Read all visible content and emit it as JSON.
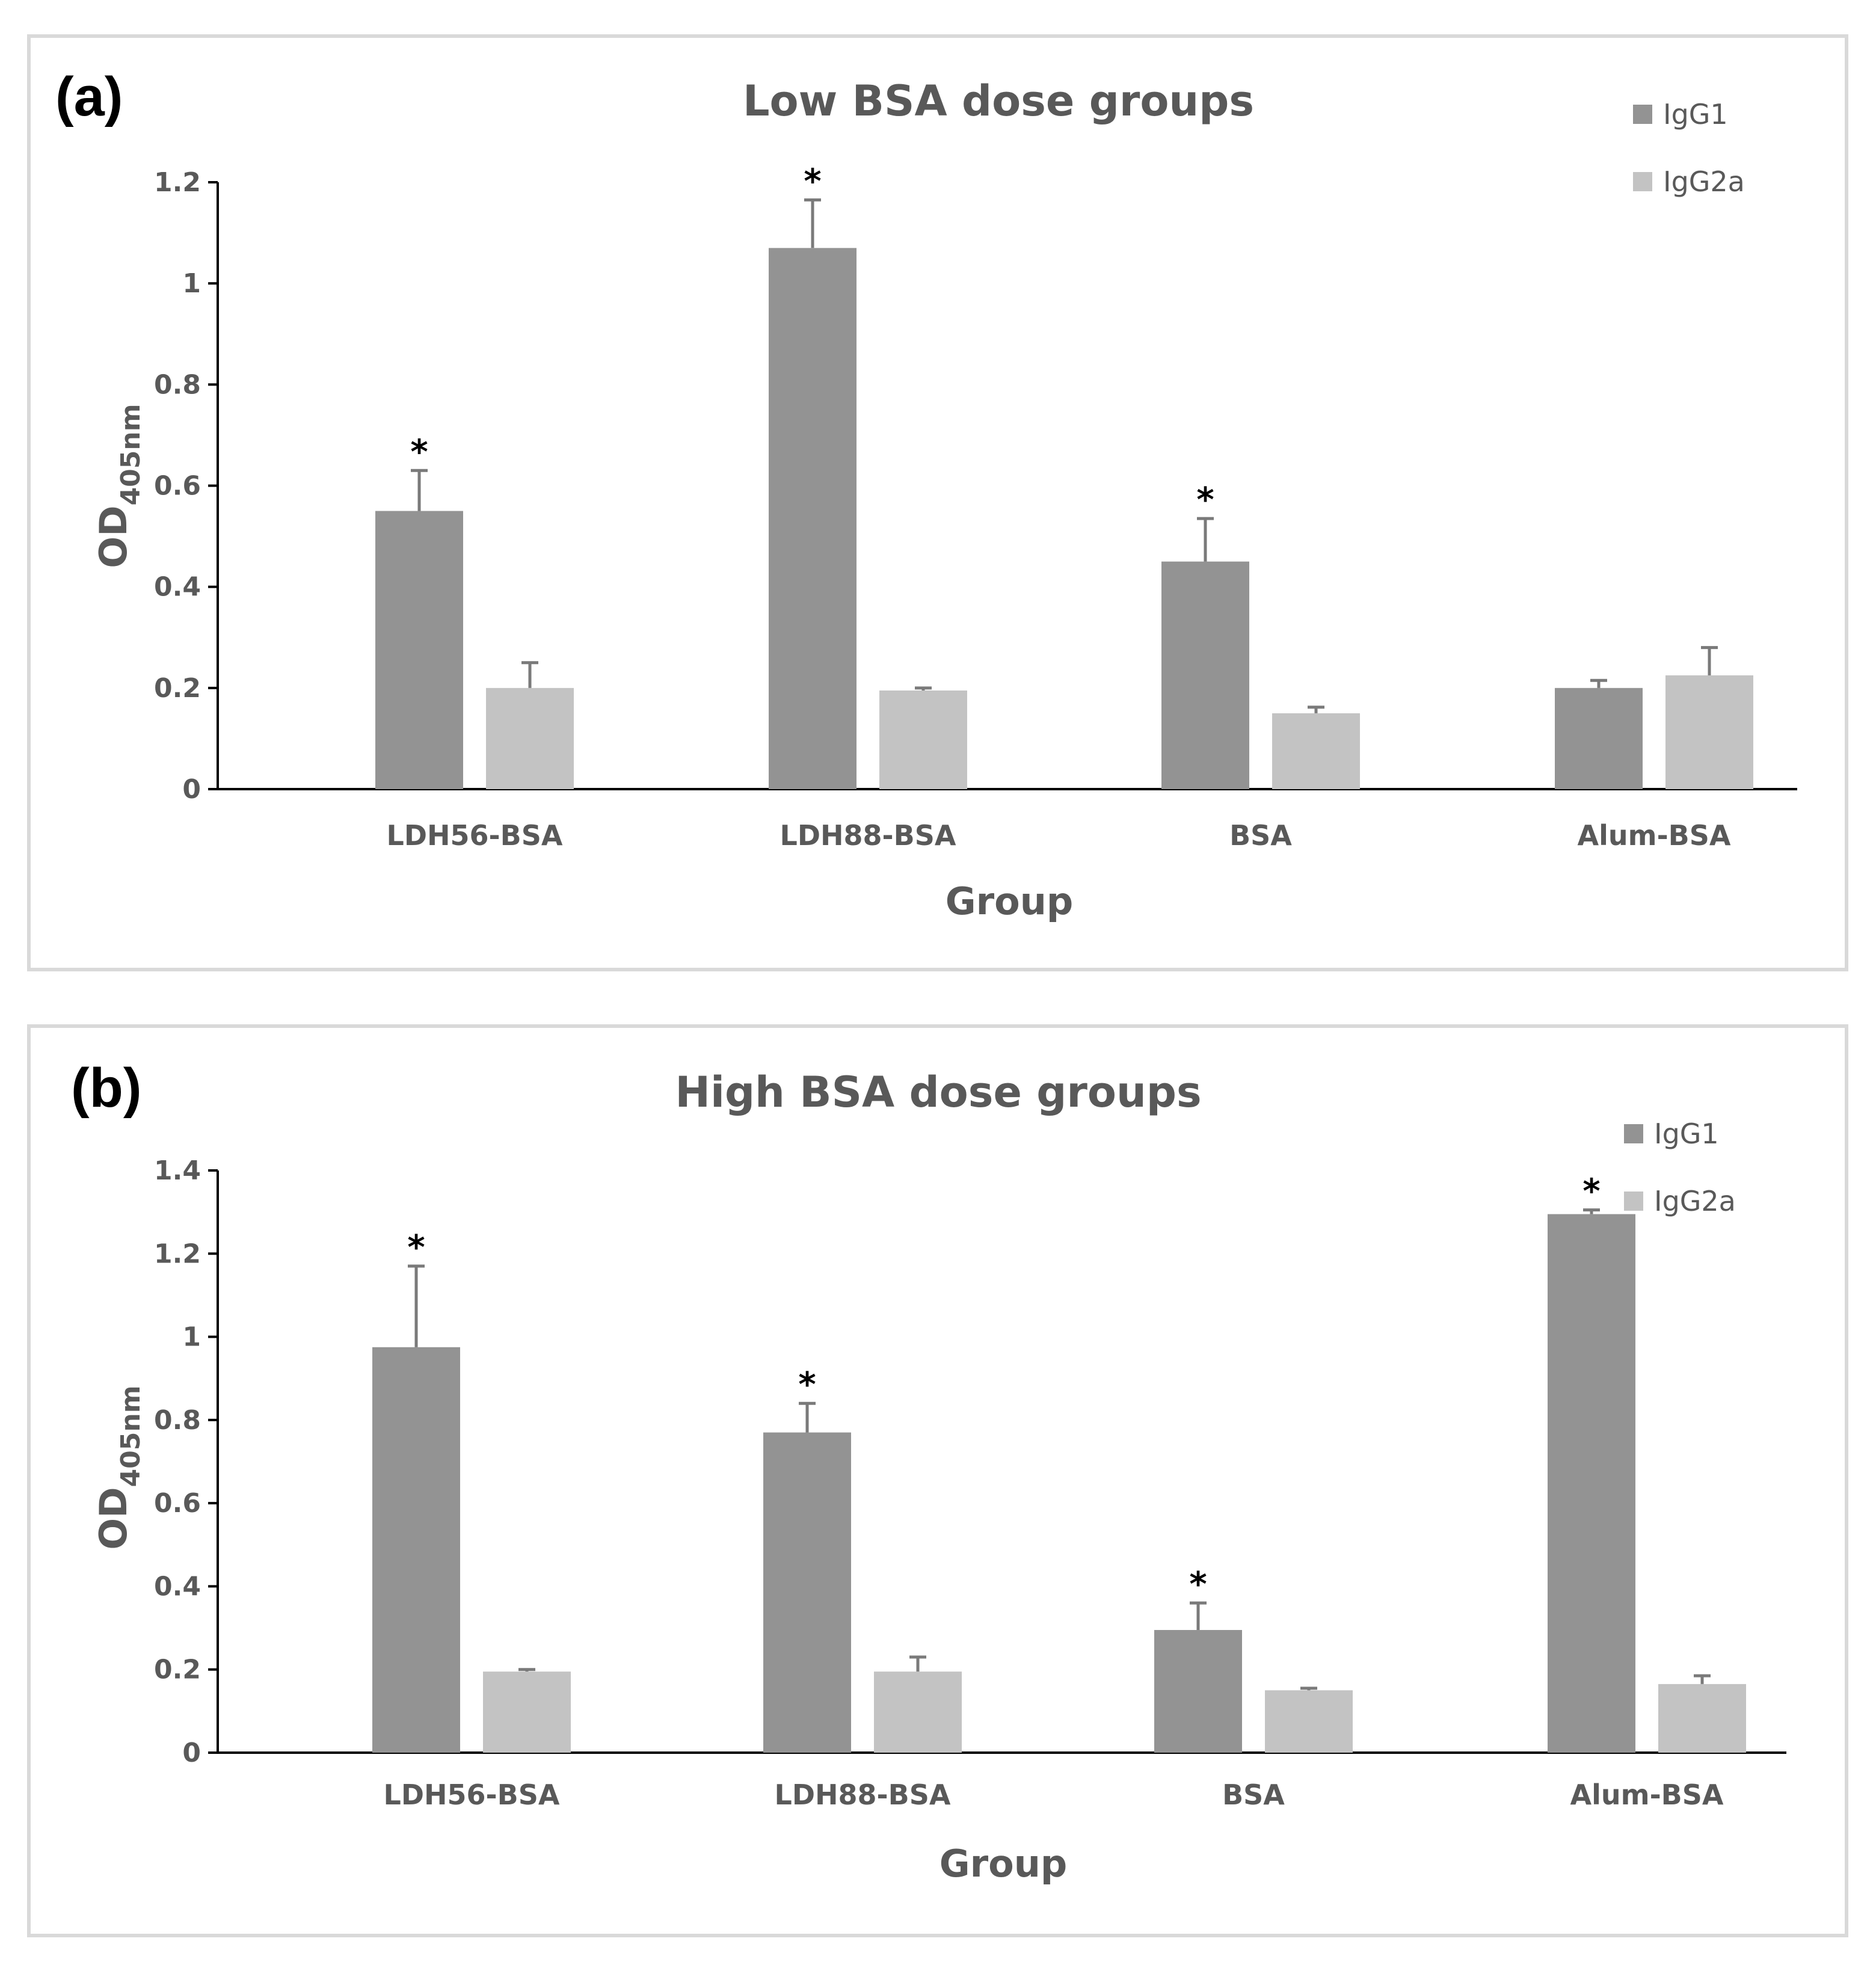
{
  "colors": {
    "IgG1": "#939393",
    "IgG2a": "#c3c3c3",
    "error": "#7a7a7a"
  },
  "chart_data": [
    {
      "type": "bar",
      "panel_label": "(a)",
      "title": "Low BSA dose groups",
      "xlabel": "Group",
      "ylabel_main": "OD",
      "ylabel_sub": "405nm",
      "ylim": [
        0,
        1.2
      ],
      "yticks": [
        0,
        0.2,
        0.4,
        0.6,
        0.8,
        1,
        1.2
      ],
      "ytick_labels": [
        "0",
        "0.2",
        "0.4",
        "0.6",
        "0.8",
        "1",
        "1.2"
      ],
      "legend_position": "top-right",
      "categories": [
        "LDH56-BSA",
        "LDH88-BSA",
        "BSA",
        "Alum-BSA"
      ],
      "series": [
        {
          "name": "IgG1",
          "values": [
            0.55,
            1.07,
            0.45,
            0.2
          ],
          "errors": [
            0.08,
            0.095,
            0.085,
            0.015
          ],
          "significance": [
            "*",
            "*",
            "*",
            ""
          ]
        },
        {
          "name": "IgG2a",
          "values": [
            0.2,
            0.195,
            0.15,
            0.225
          ],
          "errors": [
            0.05,
            0.005,
            0.012,
            0.055
          ],
          "significance": [
            "",
            "",
            "",
            ""
          ]
        }
      ]
    },
    {
      "type": "bar",
      "panel_label": "(b)",
      "title": "High BSA dose groups",
      "xlabel": "Group",
      "ylabel_main": "OD",
      "ylabel_sub": "405nm",
      "ylim": [
        0,
        1.4
      ],
      "yticks": [
        0,
        0.2,
        0.4,
        0.6,
        0.8,
        1,
        1.2,
        1.4
      ],
      "ytick_labels": [
        "0",
        "0.2",
        "0.4",
        "0.6",
        "0.8",
        "1",
        "1.2",
        "1.4"
      ],
      "legend_position": "top-right",
      "categories": [
        "LDH56-BSA",
        "LDH88-BSA",
        "BSA",
        "Alum-BSA"
      ],
      "series": [
        {
          "name": "IgG1",
          "values": [
            0.975,
            0.77,
            0.295,
            1.295
          ],
          "errors": [
            0.195,
            0.07,
            0.065,
            0.01
          ],
          "significance": [
            "*",
            "*",
            "*",
            "*"
          ]
        },
        {
          "name": "IgG2a",
          "values": [
            0.195,
            0.195,
            0.15,
            0.165
          ],
          "errors": [
            0.005,
            0.035,
            0.005,
            0.02
          ],
          "significance": [
            "",
            "",
            "",
            ""
          ]
        }
      ]
    }
  ]
}
